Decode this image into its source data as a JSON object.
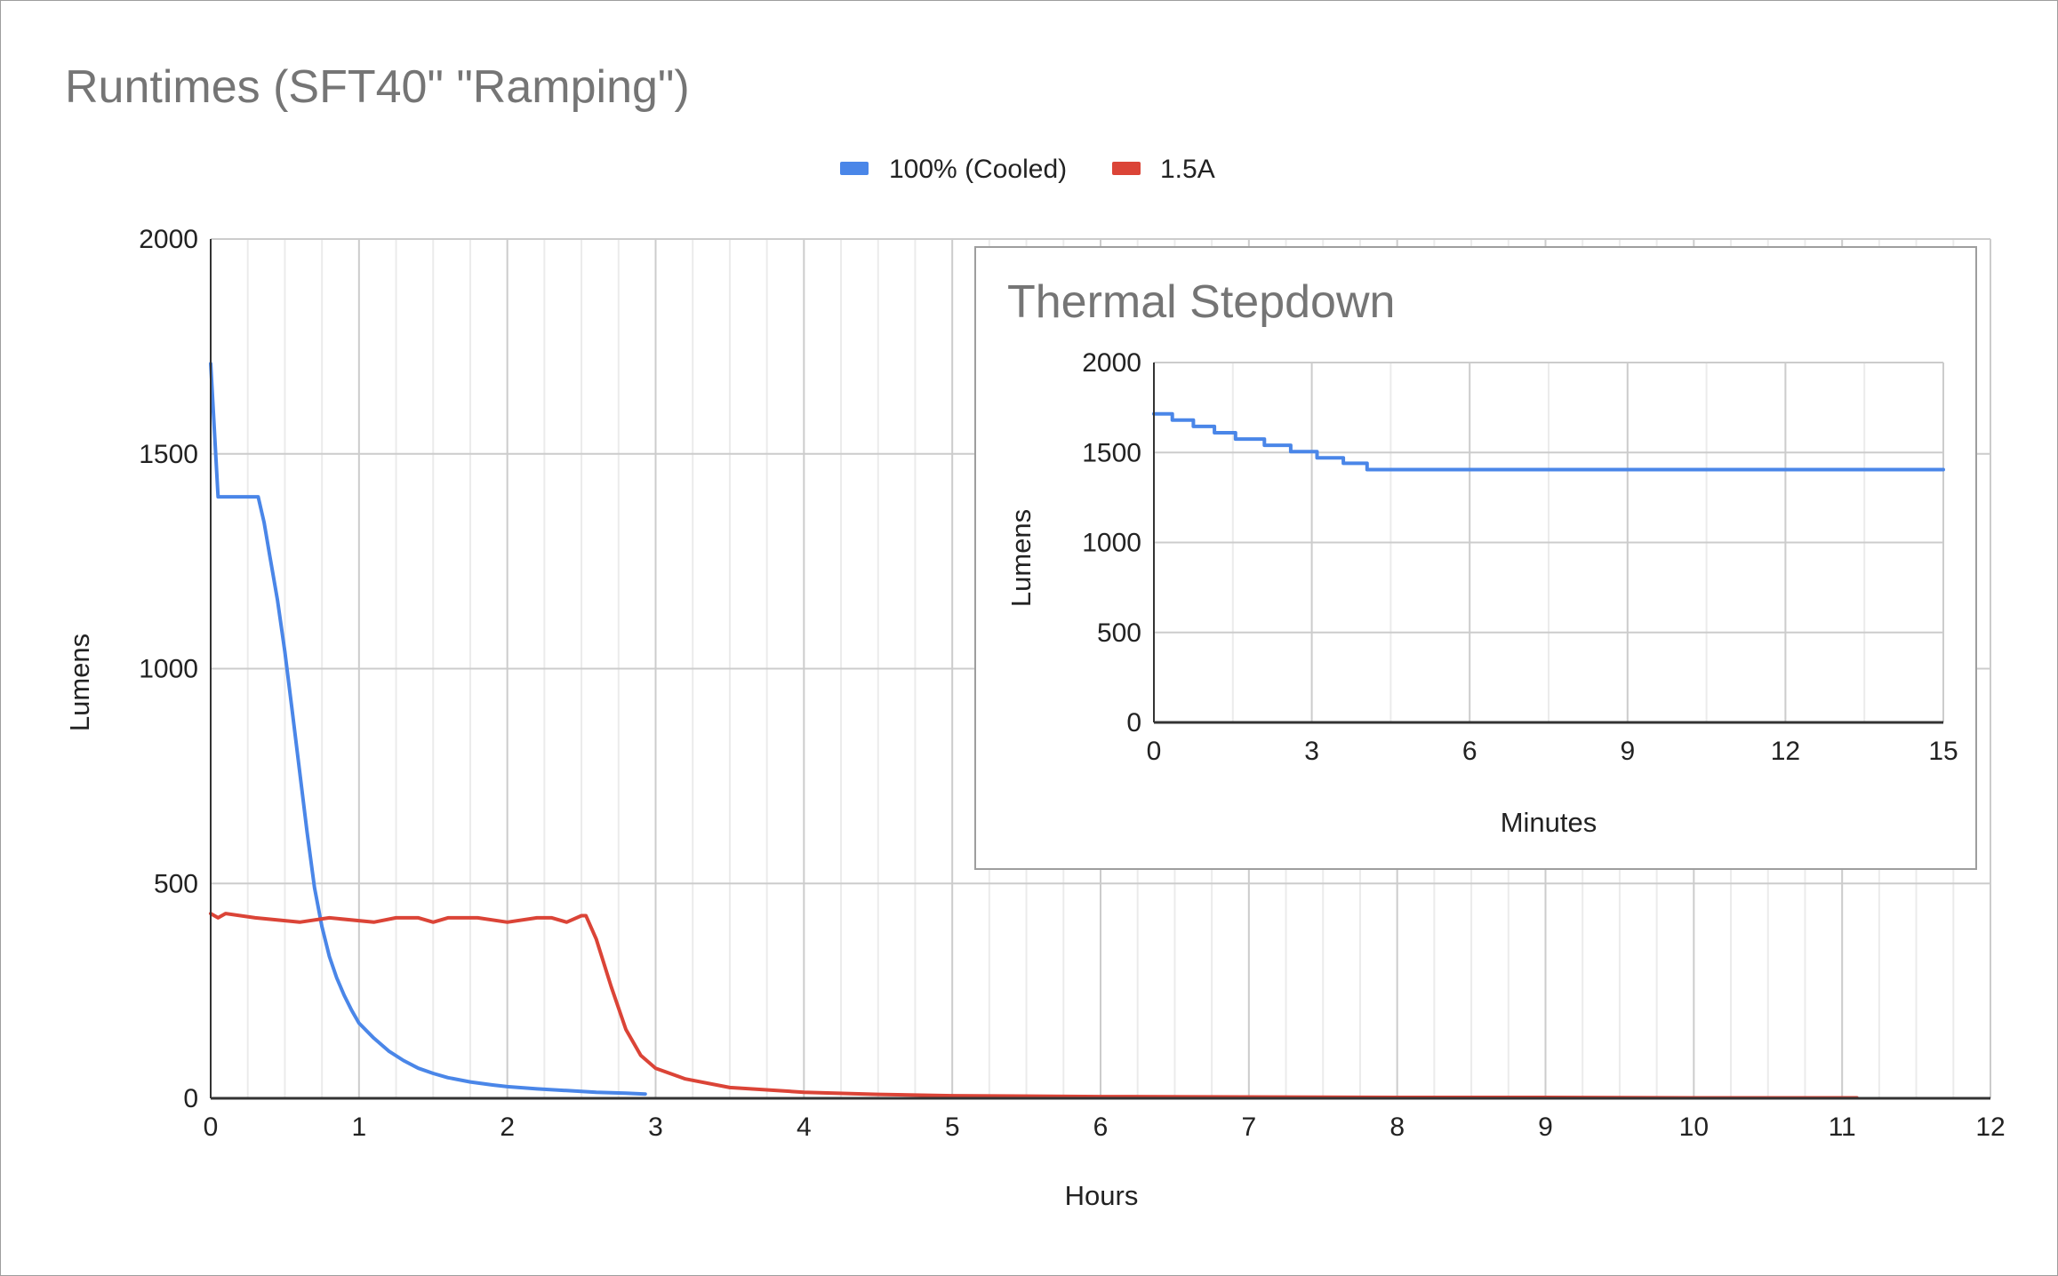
{
  "chart_data": [
    {
      "type": "line",
      "title": "Runtimes (SFT40\" \"Ramping\")",
      "xlabel": "Hours",
      "ylabel": "Lumens",
      "xlim": [
        0,
        12
      ],
      "ylim": [
        0,
        2000
      ],
      "xticks": [
        0,
        1,
        2,
        3,
        4,
        5,
        6,
        7,
        8,
        9,
        10,
        11,
        12
      ],
      "yticks": [
        0,
        500,
        1000,
        1500,
        2000
      ],
      "xtick_labels": [
        "0",
        "1",
        "2",
        "3",
        "4",
        "5",
        "6",
        "7",
        "8",
        "9",
        "10",
        "11",
        "12"
      ],
      "ytick_labels": [
        "0",
        "500",
        "1000",
        "1500",
        "2000"
      ],
      "legend_position": "top",
      "grid": true,
      "series": [
        {
          "name": "100% (Cooled)",
          "color": "#4a86e8",
          "x": [
            0,
            0.05,
            0.07,
            0.32,
            0.36,
            0.4,
            0.45,
            0.5,
            0.55,
            0.6,
            0.65,
            0.7,
            0.75,
            0.8,
            0.85,
            0.9,
            0.95,
            1.0,
            1.1,
            1.2,
            1.3,
            1.4,
            1.5,
            1.6,
            1.75,
            1.9,
            2.0,
            2.2,
            2.4,
            2.6,
            2.8,
            2.93
          ],
          "y": [
            1710,
            1400,
            1400,
            1400,
            1340,
            1260,
            1160,
            1040,
            900,
            760,
            620,
            490,
            400,
            330,
            280,
            240,
            205,
            175,
            140,
            110,
            88,
            70,
            58,
            48,
            38,
            31,
            27,
            22,
            18,
            14,
            12,
            10
          ]
        },
        {
          "name": "1.5A",
          "color": "#db4437",
          "x": [
            0,
            0.05,
            0.1,
            0.3,
            0.6,
            0.8,
            1.1,
            1.25,
            1.4,
            1.5,
            1.6,
            1.8,
            2.0,
            2.2,
            2.3,
            2.4,
            2.5,
            2.53,
            2.6,
            2.7,
            2.8,
            2.9,
            3.0,
            3.2,
            3.5,
            4.0,
            4.5,
            5.0,
            6.0,
            7.0,
            8.0,
            9.0,
            10.0,
            11.1
          ],
          "y": [
            430,
            420,
            430,
            420,
            410,
            420,
            410,
            420,
            420,
            410,
            420,
            420,
            410,
            420,
            420,
            410,
            425,
            425,
            370,
            260,
            160,
            100,
            70,
            45,
            25,
            14,
            9,
            6,
            4,
            3,
            2,
            2,
            1,
            1
          ]
        }
      ]
    },
    {
      "type": "line",
      "title": "Thermal Stepdown",
      "xlabel": "Minutes",
      "ylabel": "Lumens",
      "xlim": [
        0,
        15
      ],
      "ylim": [
        0,
        2000
      ],
      "xticks": [
        0,
        3,
        6,
        9,
        12,
        15
      ],
      "yticks": [
        0,
        500,
        1000,
        1500,
        2000
      ],
      "xtick_labels": [
        "0",
        "3",
        "6",
        "9",
        "12",
        "15"
      ],
      "ytick_labels": [
        "0",
        "500",
        "1000",
        "1500",
        "2000"
      ],
      "grid": true,
      "series": [
        {
          "name": "100% (Cooled)",
          "color": "#4a86e8",
          "x": [
            0,
            0.35,
            0.35,
            0.75,
            0.75,
            1.15,
            1.15,
            1.55,
            1.55,
            2.1,
            2.1,
            2.6,
            2.6,
            3.1,
            3.1,
            3.6,
            3.6,
            4.05,
            4.05,
            15
          ],
          "y": [
            1715,
            1715,
            1680,
            1680,
            1645,
            1645,
            1610,
            1610,
            1575,
            1575,
            1540,
            1540,
            1505,
            1505,
            1470,
            1470,
            1440,
            1440,
            1405,
            1405
          ]
        }
      ]
    }
  ]
}
